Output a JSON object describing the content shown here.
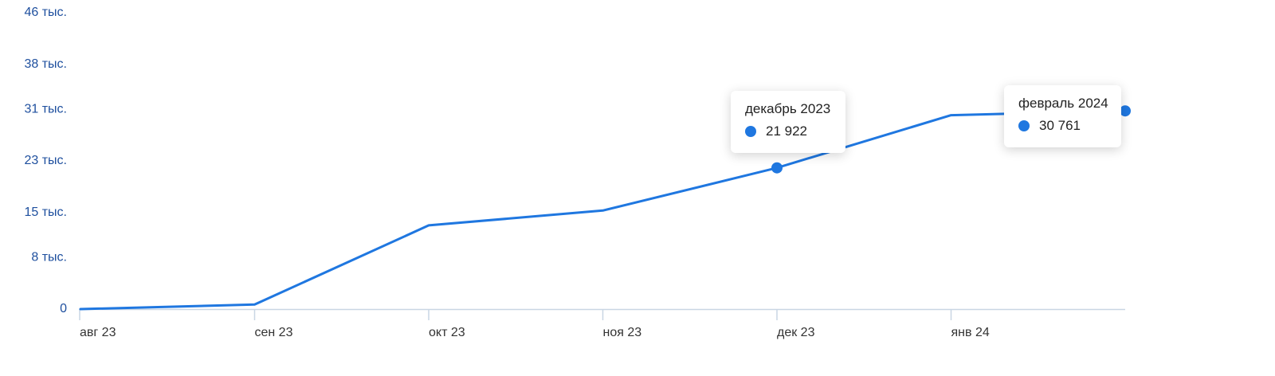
{
  "colors": {
    "series": "#1f77e0",
    "y_tick_text": "#1e4f9e",
    "x_tick_text": "#333333",
    "axis_line": "#c9d6e4"
  },
  "chart_data": {
    "type": "line",
    "title": "",
    "xlabel": "",
    "ylabel": "",
    "x": [
      "2023-08",
      "2023-09",
      "2023-10",
      "2023-11",
      "2023-12",
      "2024-01",
      "2024-02"
    ],
    "x_tick_labels": [
      "авг 23",
      "сен 23",
      "окт 23",
      "ноя 23",
      "дек 23",
      "янв 24"
    ],
    "y_tick_values": [
      0,
      8000,
      15000,
      23000,
      31000,
      38000,
      46000
    ],
    "y_tick_labels": [
      "0",
      "8 тыс.",
      "15 тыс.",
      "23 тыс.",
      "31 тыс.",
      "38 тыс.",
      "46 тыс."
    ],
    "ylim": [
      0,
      46000
    ],
    "grid": false,
    "legend": "none",
    "series": [
      {
        "values": [
          0,
          700,
          13000,
          15300,
          21922,
          30100,
          30761
        ]
      }
    ],
    "highlighted_points": [
      4,
      6
    ],
    "tooltips": [
      {
        "point_index": 4,
        "title": "декабрь 2023",
        "value": "21 922"
      },
      {
        "point_index": 6,
        "title": "февраль 2024",
        "value": "30 761"
      }
    ]
  }
}
